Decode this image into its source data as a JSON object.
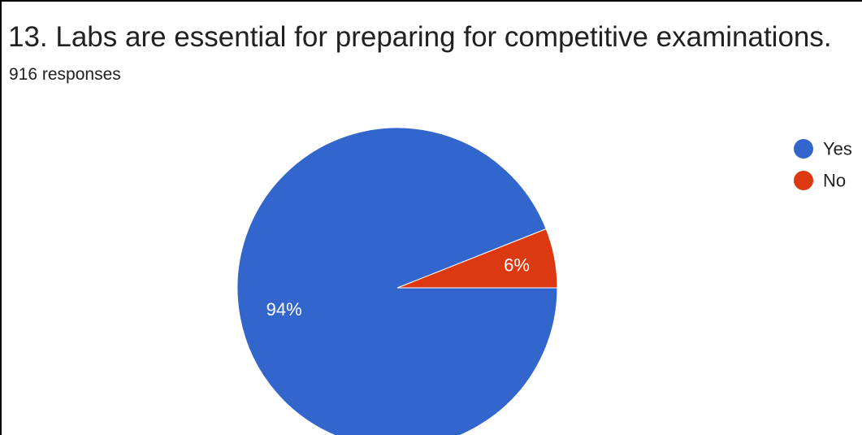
{
  "header": {
    "title": "13. Labs are essential for preparing for competitive examinations.",
    "subtitle": "916 responses"
  },
  "chart_data": {
    "type": "pie",
    "title": "13. Labs are essential for preparing for competitive examinations.",
    "subtitle": "916 responses",
    "slices": [
      {
        "label": "Yes",
        "value": 94,
        "display": "94%",
        "color": "#3366CC"
      },
      {
        "label": "No",
        "value": 6,
        "display": "6%",
        "color": "#DC3912"
      }
    ],
    "legend_position": "right",
    "start_angle_note": "slices drawn counterclockwise starting from 3 o'clock: No first, then Yes"
  }
}
